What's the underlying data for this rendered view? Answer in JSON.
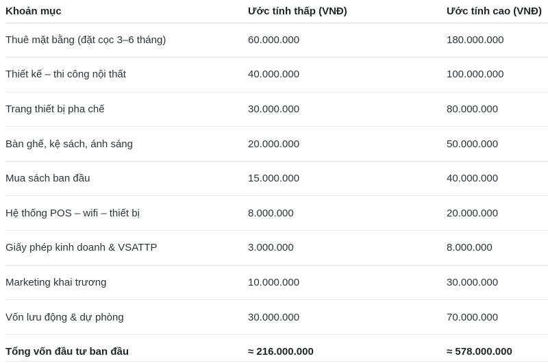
{
  "table": {
    "columns": [
      {
        "label": "Khoản mục"
      },
      {
        "label": "Ước tính thấp (VNĐ)"
      },
      {
        "label": "Ước tính cao (VNĐ)"
      }
    ],
    "rows": [
      {
        "item": "Thuê mặt bằng (đặt cọc 3–6 tháng)",
        "low": "60.000.000",
        "high": "180.000.000"
      },
      {
        "item": "Thiết kế – thi công nội thất",
        "low": "40.000.000",
        "high": "100.000.000"
      },
      {
        "item": "Trang thiết bị pha chế",
        "low": "30.000.000",
        "high": "80.000.000"
      },
      {
        "item": "Bàn ghế, kệ sách, ánh sáng",
        "low": "20.000.000",
        "high": "50.000.000"
      },
      {
        "item": "Mua sách ban đầu",
        "low": "15.000.000",
        "high": "40.000.000"
      },
      {
        "item": "Hệ thống POS – wifi – thiết bị",
        "low": "8.000.000",
        "high": "20.000.000"
      },
      {
        "item": "Giấy phép kinh doanh & VSATTP",
        "low": "3.000.000",
        "high": "8.000.000"
      },
      {
        "item": "Marketing khai trương",
        "low": "10.000.000",
        "high": "30.000.000"
      },
      {
        "item": "Vốn lưu động & dự phòng",
        "low": "30.000.000",
        "high": "70.000.000"
      }
    ],
    "total": {
      "item": "Tổng vốn đầu tư ban đầu",
      "low": "≈ 216.000.000",
      "high": "≈ 578.000.000"
    }
  },
  "colors": {
    "background": "#ffffff",
    "text": "#2d333a",
    "bold_text": "#1f2328",
    "header_border": "#d8d8dc",
    "row_border": "#e7e7ea"
  }
}
